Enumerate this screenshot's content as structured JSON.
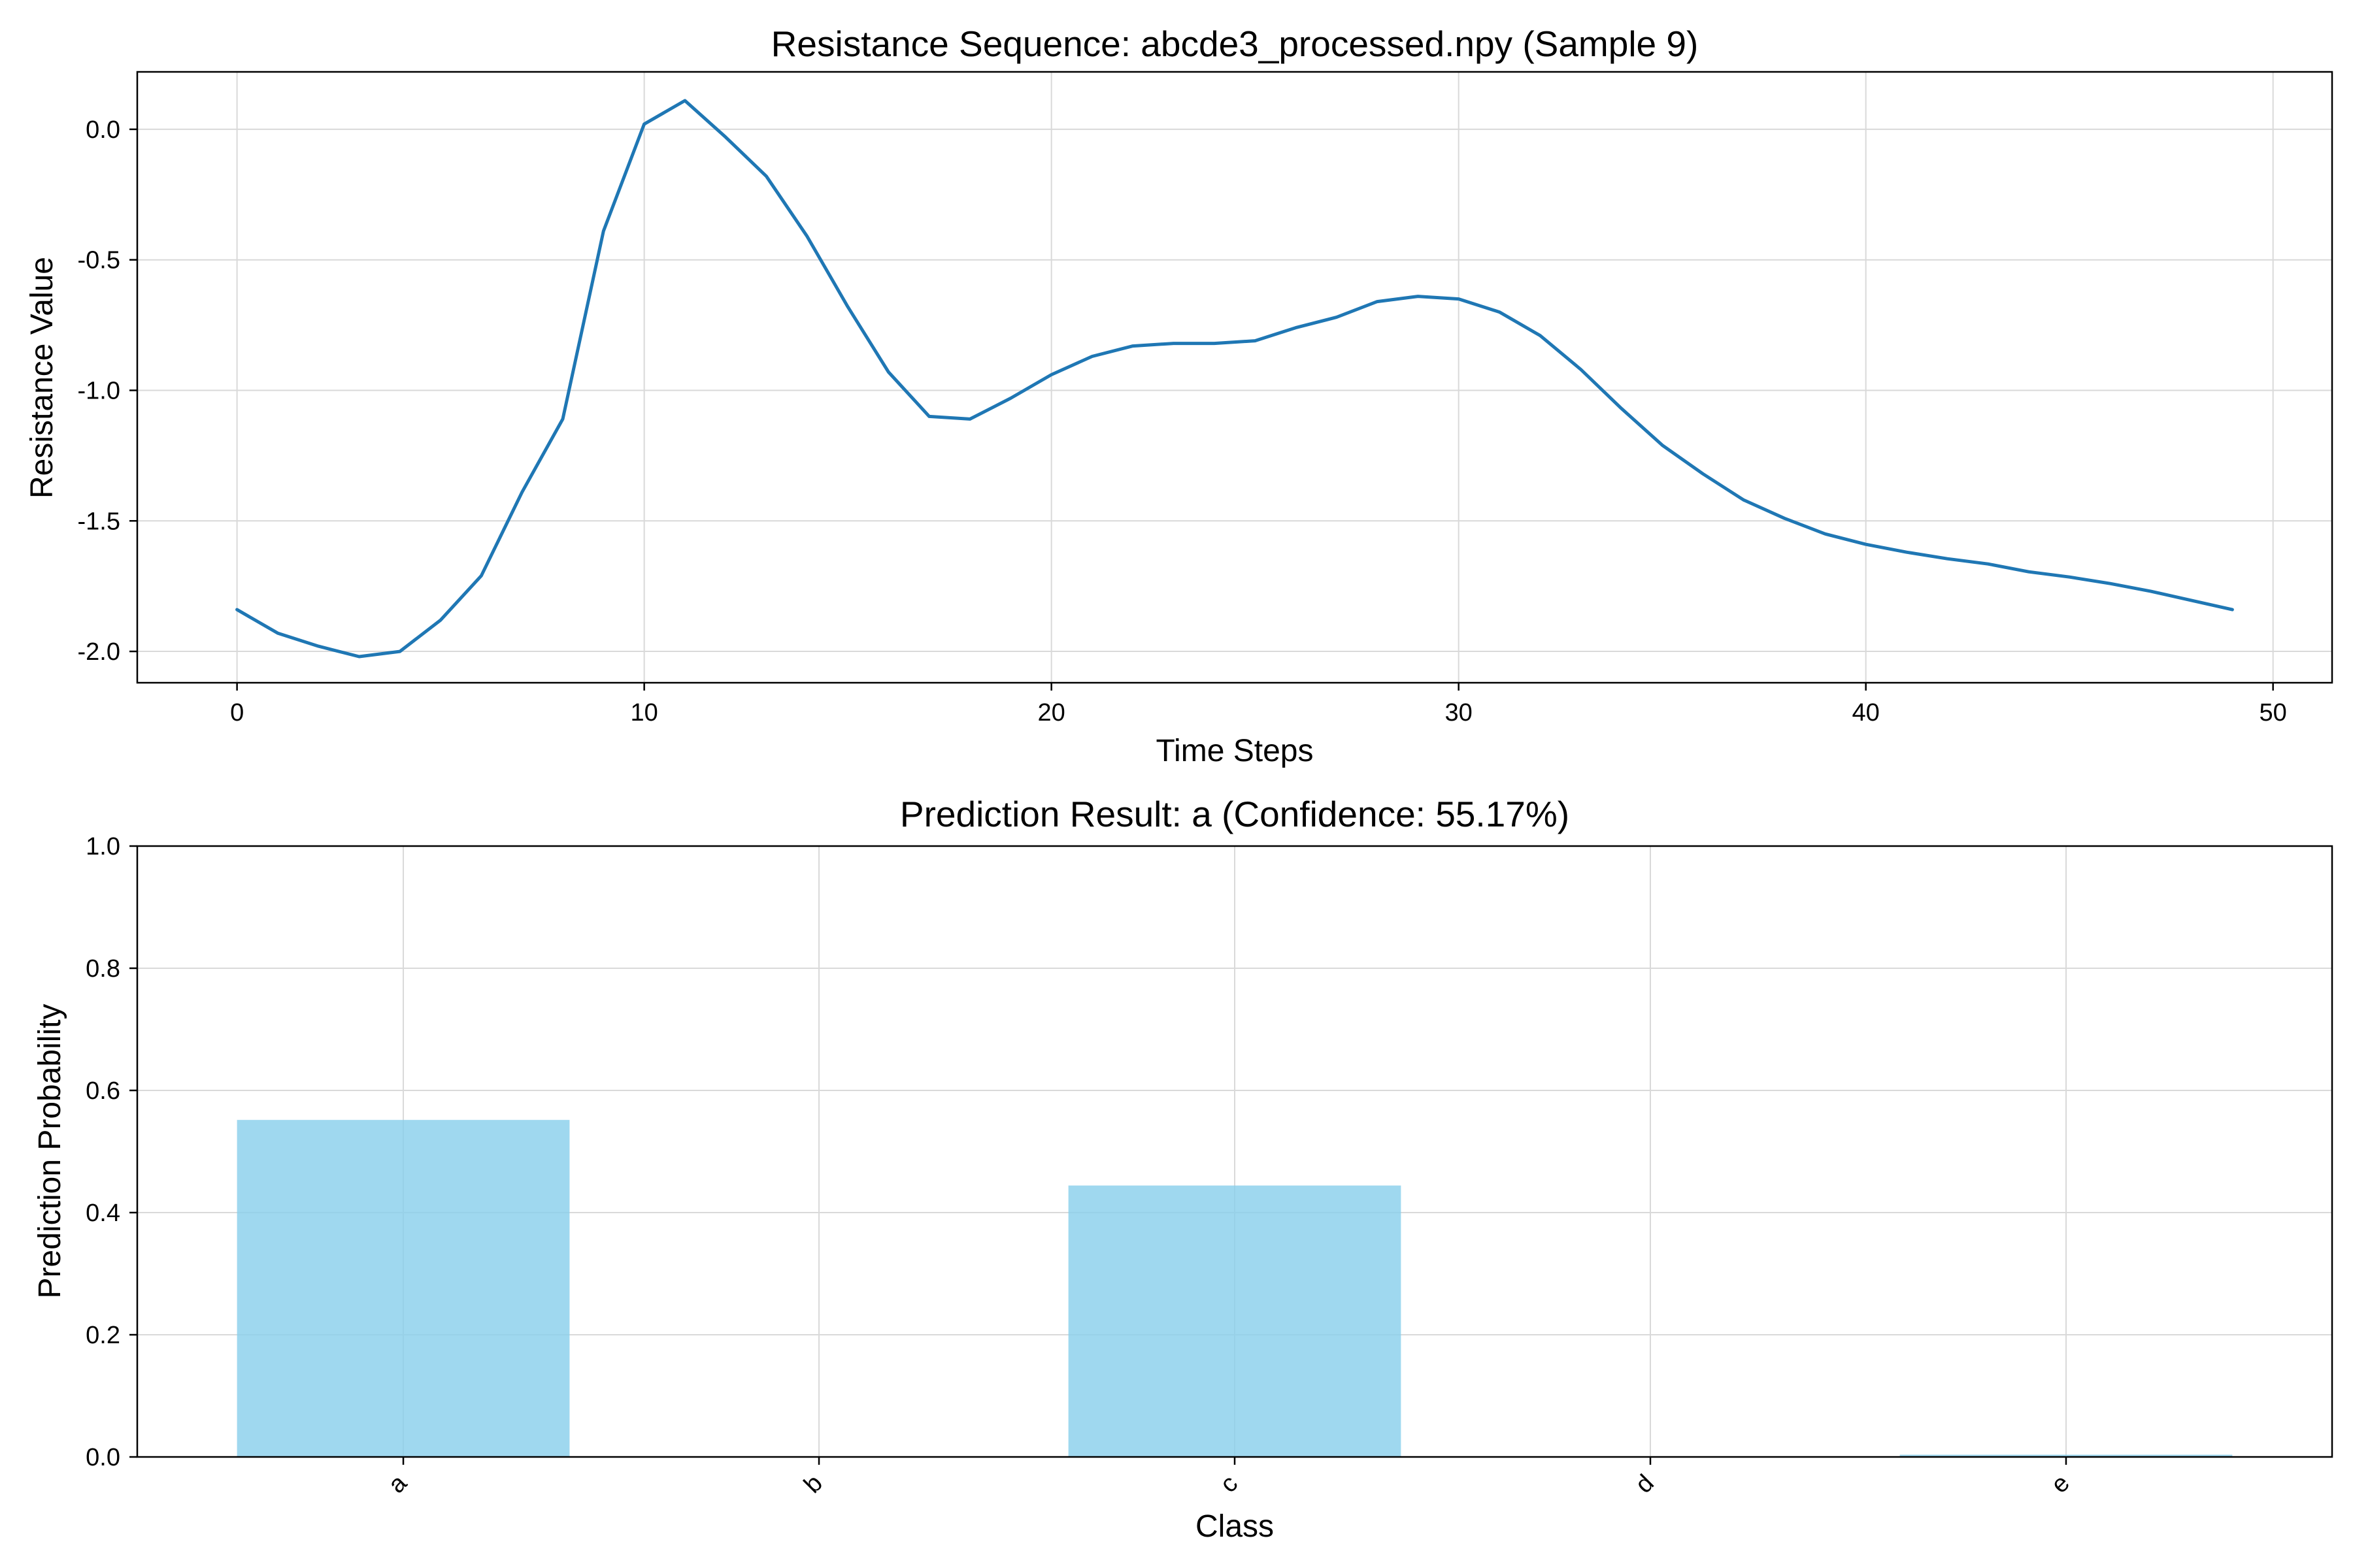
{
  "chart_data": [
    {
      "type": "line",
      "title": "Resistance Sequence: abcde3_processed.npy (Sample 9)",
      "xlabel": "Time Steps",
      "ylabel": "Resistance Value",
      "xlim": [
        -2.45,
        51.45
      ],
      "ylim": [
        -2.12,
        0.22
      ],
      "xticks": [
        0,
        10,
        20,
        30,
        40,
        50
      ],
      "yticks": [
        0.0,
        -0.5,
        -1.0,
        -1.5,
        -2.0
      ],
      "ytick_labels": [
        "0.0",
        "-0.5",
        "-1.0",
        "-1.5",
        "-2.0"
      ],
      "grid": true,
      "line_color": "#1f77b4",
      "x": [
        0,
        1,
        2,
        3,
        4,
        5,
        6,
        7,
        8,
        9,
        10,
        11,
        12,
        13,
        14,
        15,
        16,
        17,
        18,
        19,
        20,
        21,
        22,
        23,
        24,
        25,
        26,
        27,
        28,
        29,
        30,
        31,
        32,
        33,
        34,
        35,
        36,
        37,
        38,
        39,
        40,
        41,
        42,
        43,
        44,
        45,
        46,
        47,
        48,
        49
      ],
      "y": [
        -1.84,
        -1.93,
        -1.98,
        -2.02,
        -2.0,
        -1.88,
        -1.71,
        -1.39,
        -1.11,
        -0.39,
        0.02,
        0.11,
        -0.03,
        -0.18,
        -0.41,
        -0.68,
        -0.93,
        -1.1,
        -1.11,
        -1.03,
        -0.94,
        -0.87,
        -0.83,
        -0.82,
        -0.82,
        -0.81,
        -0.76,
        -0.72,
        -0.66,
        -0.64,
        -0.65,
        -0.7,
        -0.79,
        -0.92,
        -1.07,
        -1.21,
        -1.32,
        -1.42,
        -1.49,
        -1.55,
        -1.59,
        -1.62,
        -1.645,
        -1.665,
        -1.695,
        -1.715,
        -1.74,
        -1.77,
        -1.805,
        -1.84
      ]
    },
    {
      "type": "bar",
      "title": "Prediction Result: a (Confidence: 55.17%)",
      "xlabel": "Class",
      "ylabel": "Prediction Probability",
      "ylim": [
        0,
        1.0
      ],
      "yticks": [
        0.0,
        0.2,
        0.4,
        0.6,
        0.8,
        1.0
      ],
      "ytick_labels": [
        "0.0",
        "0.2",
        "0.4",
        "0.6",
        "0.8",
        "1.0"
      ],
      "grid": true,
      "bar_color": "#87ceeb",
      "categories": [
        "a",
        "b",
        "c",
        "d",
        "e"
      ],
      "values": [
        0.5517,
        0.0,
        0.4443,
        0.0003,
        0.0037
      ]
    }
  ]
}
